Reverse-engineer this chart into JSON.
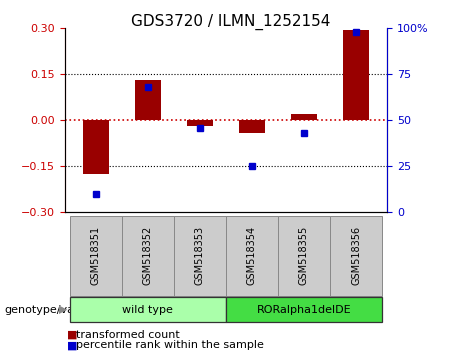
{
  "title": "GDS3720 / ILMN_1252154",
  "samples": [
    "GSM518351",
    "GSM518352",
    "GSM518353",
    "GSM518354",
    "GSM518355",
    "GSM518356"
  ],
  "transformed_count": [
    -0.175,
    0.13,
    -0.02,
    -0.04,
    0.02,
    0.295
  ],
  "percentile_rank": [
    10,
    68,
    46,
    25,
    43,
    98
  ],
  "ylim_left": [
    -0.3,
    0.3
  ],
  "ylim_right": [
    0,
    100
  ],
  "yticks_left": [
    -0.3,
    -0.15,
    0,
    0.15,
    0.3
  ],
  "yticks_right": [
    0,
    25,
    50,
    75,
    100
  ],
  "ytick_labels_right": [
    "0",
    "25",
    "50",
    "75",
    "100%"
  ],
  "dotted_lines_black": [
    -0.15,
    0.15
  ],
  "bar_color": "#990000",
  "marker_color": "#0000cc",
  "bar_width": 0.5,
  "xlim": [
    -0.6,
    5.6
  ],
  "genotype_groups": [
    {
      "label": "wild type",
      "x_start": -0.5,
      "x_end": 2.5,
      "color": "#aaffaa"
    },
    {
      "label": "RORalpha1delDE",
      "x_start": 2.5,
      "x_end": 5.5,
      "color": "#44dd44"
    }
  ],
  "genotype_label": "genotype/variation",
  "legend_items": [
    {
      "label": "transformed count",
      "color": "#990000"
    },
    {
      "label": "percentile rank within the sample",
      "color": "#0000cc"
    }
  ],
  "sample_box_color": "#cccccc",
  "sample_box_edge": "#888888",
  "title_fontsize": 11,
  "tick_fontsize": 8,
  "legend_fontsize": 8,
  "genotype_fontsize": 8
}
